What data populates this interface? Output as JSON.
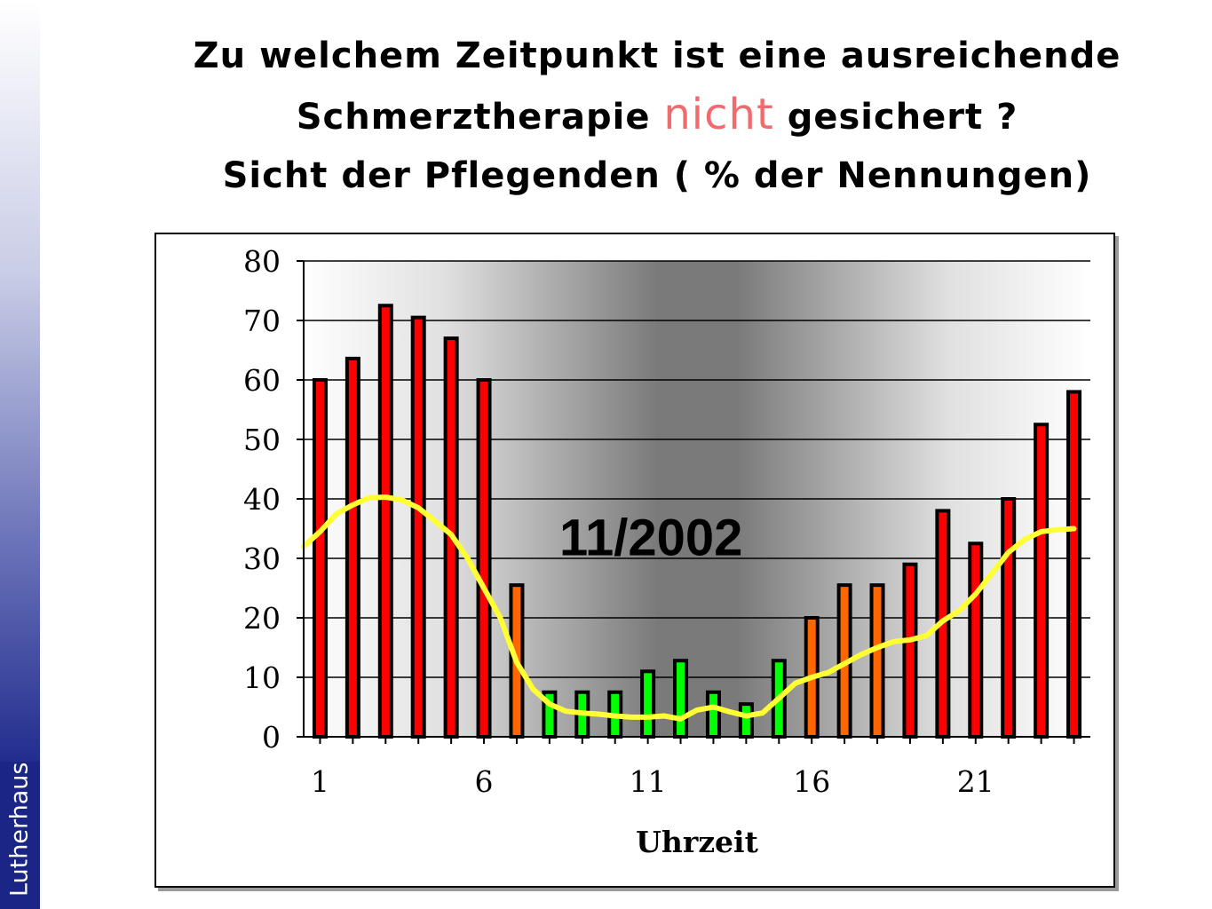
{
  "slide": {
    "title_line1": "Zu welchem Zeitpunkt ist eine  ausreichende",
    "title_line2_before": "Schmerztherapie ",
    "title_line2_emph": "nicht",
    "title_line2_after": " gesichert ?",
    "title_line3": "Sicht der Pflegenden ( % der Nennungen)",
    "emph_color": "#ef6b6e",
    "brand": "Lutherhaus"
  },
  "chart_data": {
    "type": "bar",
    "x": [
      1,
      2,
      3,
      4,
      5,
      6,
      7,
      8,
      9,
      10,
      11,
      12,
      13,
      14,
      15,
      16,
      17,
      18,
      19,
      20,
      21,
      22,
      23,
      24
    ],
    "values": [
      60,
      63.6,
      72.5,
      70.5,
      67,
      60,
      25.5,
      7.5,
      7.5,
      7.5,
      11,
      12.8,
      7.5,
      5.5,
      12.8,
      20,
      25.5,
      25.5,
      29,
      38,
      32.5,
      40,
      52.5,
      58
    ],
    "bar_colors": [
      "#ff0000",
      "#ff0000",
      "#ff0000",
      "#ff0000",
      "#ff0000",
      "#ff0000",
      "#ff6600",
      "#00ff00",
      "#00ff00",
      "#00ff00",
      "#00ff00",
      "#00ff00",
      "#00ff00",
      "#00ff00",
      "#00ff00",
      "#ff6600",
      "#ff6600",
      "#ff6600",
      "#ff0000",
      "#ff0000",
      "#ff0000",
      "#ff0000",
      "#ff0000",
      "#ff0000"
    ],
    "trend_line": {
      "color": "#ffff33",
      "x": [
        0.5,
        1,
        1.5,
        2,
        2.5,
        3,
        3.5,
        4,
        4.5,
        5,
        5.5,
        6,
        6.5,
        7,
        7.5,
        8,
        8.5,
        9,
        9.5,
        10,
        10.5,
        11,
        11.5,
        12,
        12.5,
        13,
        13.5,
        14,
        14.5,
        15,
        15.5,
        16,
        16.5,
        17,
        17.5,
        18,
        18.5,
        19,
        19.5,
        20,
        20.5,
        21,
        21.5,
        22,
        22.5,
        23,
        23.5,
        24
      ],
      "values": [
        32,
        34.5,
        37.5,
        39,
        40.2,
        40.3,
        39.8,
        38.5,
        36.3,
        34,
        30,
        25,
        20,
        12.5,
        8,
        5.5,
        4.3,
        4,
        3.8,
        3.5,
        3.3,
        3.3,
        3.5,
        3,
        4.5,
        5,
        4.2,
        3.5,
        4,
        6.5,
        9,
        10,
        10.8,
        12.3,
        13.8,
        15,
        16,
        16.3,
        17,
        19.5,
        21.2,
        24,
        27.5,
        31,
        33.2,
        34.5,
        34.8,
        35
      ]
    },
    "xticks": [
      1,
      6,
      11,
      16,
      21
    ],
    "yticks": [
      0,
      10,
      20,
      30,
      40,
      50,
      60,
      70,
      80
    ],
    "ylim": [
      0,
      80
    ],
    "xlim": [
      0.5,
      24.5
    ],
    "xlabel": "Uhrzeit",
    "ylabel": "",
    "annotation": "11/2002",
    "grid": true,
    "legend": "none"
  }
}
